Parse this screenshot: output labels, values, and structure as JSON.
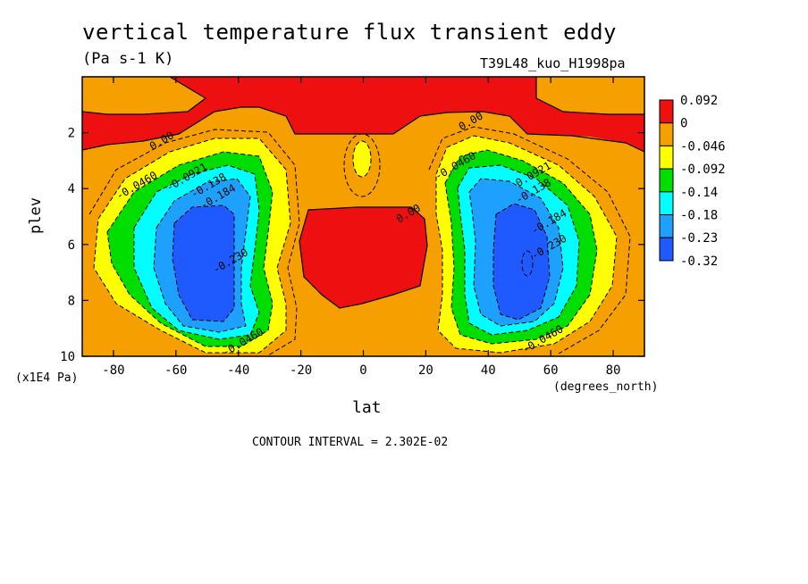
{
  "chart_data": {
    "type": "heatmap",
    "subtype": "filled-contour",
    "title": "vertical temperature flux transient eddy",
    "units": "(Pa s-1 K)",
    "run_id": "T39L48_kuo_H1998pa",
    "xlabel": "lat",
    "xunits": "(degrees_north)",
    "ylabel": "plev",
    "yunits": "(x1E4 Pa)",
    "xlim": [
      -90,
      90
    ],
    "ylim": [
      0,
      10
    ],
    "y_inverted": true,
    "x_ticks": [
      -80,
      -60,
      -40,
      -20,
      0,
      20,
      40,
      60,
      80
    ],
    "y_ticks": [
      2,
      4,
      6,
      8,
      10
    ],
    "contour_interval_text": "CONTOUR INTERVAL = 2.302E-02",
    "colorbar": {
      "labels": [
        "0.092",
        "0",
        "-0.046",
        "-0.092",
        "-0.14",
        "-0.18",
        "-0.23",
        "-0.32"
      ],
      "colors": [
        "#ee1010",
        "#f5a000",
        "#ffff00",
        "#00dd00",
        "#00ffff",
        "#1ea0ff",
        "#1e5aff"
      ]
    },
    "contour_labels": [
      {
        "text": "0.00",
        "lat": -64,
        "plev": 2.4
      },
      {
        "text": "0.00",
        "lat": 35,
        "plev": 1.7
      },
      {
        "text": "0.00",
        "lat": 15,
        "plev": 5.0
      },
      {
        "text": "-0.0460",
        "lat": -72,
        "plev": 4.0
      },
      {
        "text": "-0.0921",
        "lat": -56,
        "plev": 3.7
      },
      {
        "text": "-0.138",
        "lat": -49,
        "plev": 4.0
      },
      {
        "text": "-0.184",
        "lat": -46,
        "plev": 4.4
      },
      {
        "text": "-0.230",
        "lat": -42,
        "plev": 6.7
      },
      {
        "text": "-0.0460",
        "lat": -38,
        "plev": 9.6
      },
      {
        "text": "-0.0460",
        "lat": 30,
        "plev": 3.3
      },
      {
        "text": "0.0921",
        "lat": 55,
        "plev": 3.6
      },
      {
        "text": "-0.138",
        "lat": 55,
        "plev": 4.2
      },
      {
        "text": "-0.184",
        "lat": 60,
        "plev": 5.3
      },
      {
        "text": "-0.230",
        "lat": 60,
        "plev": 6.2
      },
      {
        "text": "-0.0460",
        "lat": 58,
        "plev": 9.5
      }
    ]
  }
}
